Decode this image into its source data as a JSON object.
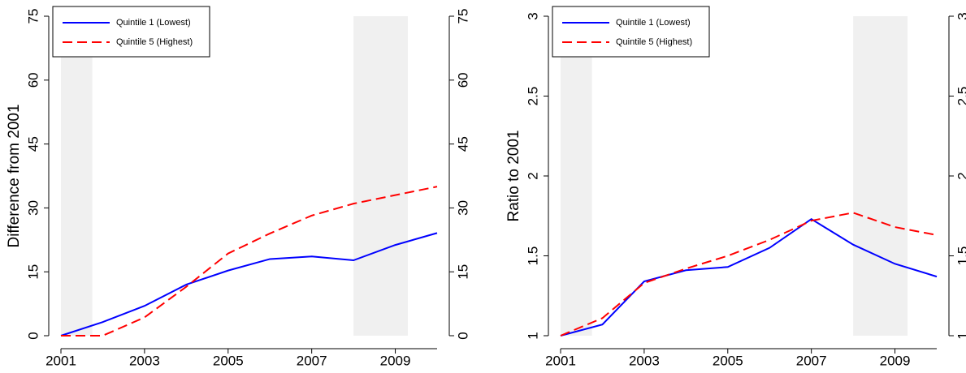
{
  "chart_data": [
    {
      "type": "line",
      "ylabel": "Difference from 2001",
      "x": [
        2001,
        2002,
        2003,
        2004,
        2005,
        2006,
        2007,
        2008,
        2009,
        2010
      ],
      "series": [
        {
          "name": "Quintile 1 (Lowest)",
          "color": "#0000ff",
          "linestyle": "solid",
          "values": [
            0,
            3.2,
            7,
            12,
            15.3,
            18,
            18.6,
            17.7,
            21.3,
            24.1
          ]
        },
        {
          "name": "Quintile 5 (Highest)",
          "color": "#ff0000",
          "linestyle": "dashed",
          "values": [
            0,
            0,
            4.3,
            11.5,
            19.3,
            24,
            28.2,
            31,
            33,
            35
          ]
        }
      ],
      "xlim": [
        2001,
        2010
      ],
      "xticks": [
        2001,
        2003,
        2005,
        2007,
        2009
      ],
      "ylim": [
        0,
        75
      ],
      "yticks": [
        0,
        15,
        30,
        45,
        60,
        75
      ],
      "shaded": [
        [
          2001,
          2001.75
        ],
        [
          2008,
          2009.3
        ]
      ],
      "legend": "upper left"
    },
    {
      "type": "line",
      "ylabel": "Ratio to 2001",
      "x": [
        2001,
        2002,
        2003,
        2004,
        2005,
        2006,
        2007,
        2008,
        2009,
        2010
      ],
      "series": [
        {
          "name": "Quintile 1 (Lowest)",
          "color": "#0000ff",
          "linestyle": "solid",
          "values": [
            1,
            1.07,
            1.34,
            1.41,
            1.43,
            1.55,
            1.73,
            1.57,
            1.45,
            1.37
          ]
        },
        {
          "name": "Quintile 5 (Highest)",
          "color": "#ff0000",
          "linestyle": "dashed",
          "values": [
            1,
            1.11,
            1.33,
            1.42,
            1.5,
            1.6,
            1.72,
            1.77,
            1.68,
            1.63
          ]
        }
      ],
      "xlim": [
        2001,
        2010
      ],
      "xticks": [
        2001,
        2003,
        2005,
        2007,
        2009
      ],
      "ylim": [
        1,
        3
      ],
      "yticks": [
        1,
        1.5,
        2,
        2.5,
        3
      ],
      "shaded": [
        [
          2001,
          2001.75
        ],
        [
          2008,
          2009.3
        ]
      ],
      "legend": "upper left"
    }
  ]
}
